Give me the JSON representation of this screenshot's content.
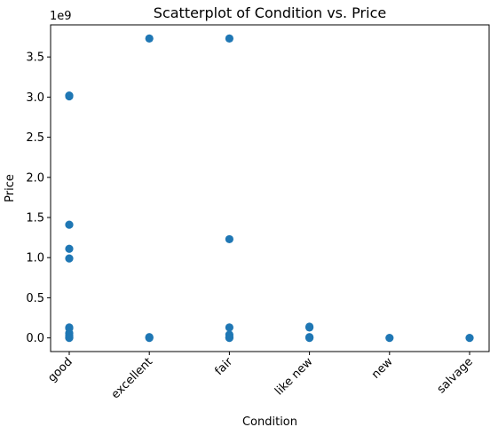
{
  "chart_data": {
    "type": "scatter",
    "title": "Scatterplot of Condition vs. Price",
    "xlabel": "Condition",
    "ylabel": "Price",
    "categories": [
      "good",
      "excellent",
      "fair",
      "like new",
      "new",
      "salvage"
    ],
    "y_offset_label": "1e9",
    "y_scale": 1000000000,
    "ylim": [
      -170000000,
      3900000000
    ],
    "yticks": [
      0.0,
      0.5,
      1.0,
      1.5,
      2.0,
      2.5,
      3.0,
      3.5
    ],
    "ytick_labels": [
      "0.0",
      "0.5",
      "1.0",
      "1.5",
      "2.0",
      "2.5",
      "3.0",
      "3.5"
    ],
    "grid": false,
    "marker_color": "#1f77b4",
    "points": [
      {
        "category": "good",
        "y": 3020000000
      },
      {
        "category": "good",
        "y": 3010000000
      },
      {
        "category": "good",
        "y": 1410000000
      },
      {
        "category": "good",
        "y": 1110000000
      },
      {
        "category": "good",
        "y": 990000000
      },
      {
        "category": "good",
        "y": 130000000
      },
      {
        "category": "good",
        "y": 120000000
      },
      {
        "category": "good",
        "y": 60000000
      },
      {
        "category": "good",
        "y": 30000000
      },
      {
        "category": "good",
        "y": 10000000
      },
      {
        "category": "good",
        "y": 0
      },
      {
        "category": "excellent",
        "y": 3730000000
      },
      {
        "category": "excellent",
        "y": 10000000
      },
      {
        "category": "excellent",
        "y": 0
      },
      {
        "category": "fair",
        "y": 3730000000
      },
      {
        "category": "fair",
        "y": 1230000000
      },
      {
        "category": "fair",
        "y": 130000000
      },
      {
        "category": "fair",
        "y": 40000000
      },
      {
        "category": "fair",
        "y": 10000000
      },
      {
        "category": "fair",
        "y": 0
      },
      {
        "category": "like new",
        "y": 140000000
      },
      {
        "category": "like new",
        "y": 130000000
      },
      {
        "category": "like new",
        "y": 10000000
      },
      {
        "category": "like new",
        "y": 0
      },
      {
        "category": "new",
        "y": 0
      },
      {
        "category": "salvage",
        "y": 0
      }
    ]
  }
}
